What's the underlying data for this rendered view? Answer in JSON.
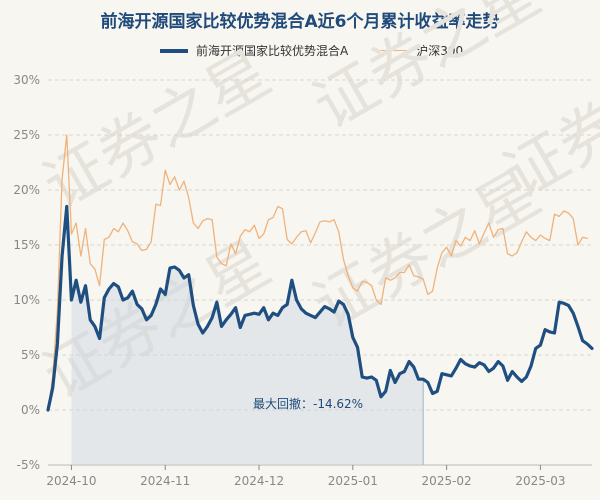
{
  "chart_data": {
    "type": "line",
    "title": "前海开源国家比较优势混合A近6个月累计收益率走势",
    "watermark": "证券之星",
    "ylim": [
      -5,
      30
    ],
    "y_ticks": [
      -5,
      0,
      5,
      10,
      15,
      20,
      25,
      30
    ],
    "y_tick_labels": [
      "-5%",
      "0%",
      "5%",
      "10%",
      "15%",
      "20%",
      "25%",
      "30%"
    ],
    "x_ticks": [
      5,
      25,
      45,
      65,
      85,
      105
    ],
    "x_tick_labels": [
      "2024-10",
      "2024-11",
      "2024-12",
      "2025-01",
      "2025-02",
      "2025-03"
    ],
    "grid": true,
    "legend_position": "top",
    "annotation": {
      "text": "最大回撤：-14.62%",
      "x_start": 5,
      "x_end": 80
    },
    "series": [
      {
        "name": "前海开源国家比较优势混合A",
        "color": "#1f4e80",
        "values": [
          0,
          2,
          6,
          14,
          18.5,
          10,
          11.8,
          9.8,
          11.3,
          8.2,
          7.6,
          6.5,
          10.2,
          11,
          11.5,
          11.2,
          10,
          10.2,
          10.8,
          9.6,
          9.2,
          8.2,
          8.6,
          9.6,
          11,
          10.5,
          12.9,
          13,
          12.7,
          12,
          12.3,
          9.5,
          7.8,
          7,
          7.6,
          8.4,
          9.8,
          7.6,
          8.2,
          8.7,
          9.3,
          7.5,
          8.6,
          8.7,
          8.8,
          8.7,
          9.3,
          8.2,
          8.8,
          8.6,
          9.3,
          9.6,
          11.8,
          10,
          9.2,
          8.8,
          8.6,
          8.4,
          8.9,
          9.4,
          9.2,
          8.9,
          9.9,
          9.6,
          8.7,
          6.6,
          5.7,
          3,
          2.9,
          3,
          2.7,
          1.2,
          1.7,
          3.6,
          2.5,
          3.3,
          3.5,
          4.4,
          3.9,
          2.8,
          2.8,
          2.5,
          1.5,
          1.7,
          3.3,
          3.2,
          3.1,
          3.8,
          4.6,
          4.2,
          4,
          3.9,
          4.3,
          4.1,
          3.5,
          3.8,
          4.4,
          4,
          2.7,
          3.5,
          3,
          2.6,
          3,
          4,
          5.6,
          5.9,
          7.3,
          7.1,
          7,
          9.8,
          9.7,
          9.5,
          8.8,
          7.6,
          6.3,
          6,
          5.6
        ]
      },
      {
        "name": "沪深300",
        "color": "#f0b27a",
        "values": [
          0,
          3,
          9,
          21,
          25,
          16,
          17,
          14,
          16.5,
          13.3,
          12.8,
          11.3,
          15.5,
          15.7,
          16.5,
          16.2,
          17,
          16.3,
          15.3,
          15.1,
          14.5,
          14.6,
          15.3,
          18.7,
          18.6,
          21.8,
          20.5,
          21.2,
          20,
          20.8,
          19.3,
          17,
          16.5,
          17.2,
          17.4,
          17.3,
          13.9,
          13.3,
          13.1,
          15.1,
          14.2,
          15.8,
          16.4,
          16.2,
          16.8,
          15.6,
          16,
          17.3,
          17.5,
          18.5,
          18.3,
          15.5,
          15.1,
          15.7,
          16.2,
          16.3,
          15.2,
          16.1,
          17.1,
          17.2,
          17.1,
          17.3,
          16.2,
          13.7,
          12.2,
          11.1,
          10.8,
          11.7,
          11.6,
          11.3,
          10,
          9.6,
          12,
          11.8,
          12,
          12.5,
          12.5,
          13.2,
          12.2,
          12.1,
          11.9,
          10.5,
          10.8,
          12.9,
          14.3,
          14.8,
          14,
          15.4,
          14.9,
          15.7,
          15.4,
          16.3,
          15.1,
          16.1,
          17,
          15.7,
          16.4,
          16.5,
          14.2,
          14,
          14.3,
          15.3,
          16.2,
          15.7,
          15.4,
          15.9,
          15.6,
          15.4,
          17.8,
          17.6,
          18.1,
          17.9,
          17.4,
          15,
          15.7,
          15.6
        ]
      }
    ]
  }
}
